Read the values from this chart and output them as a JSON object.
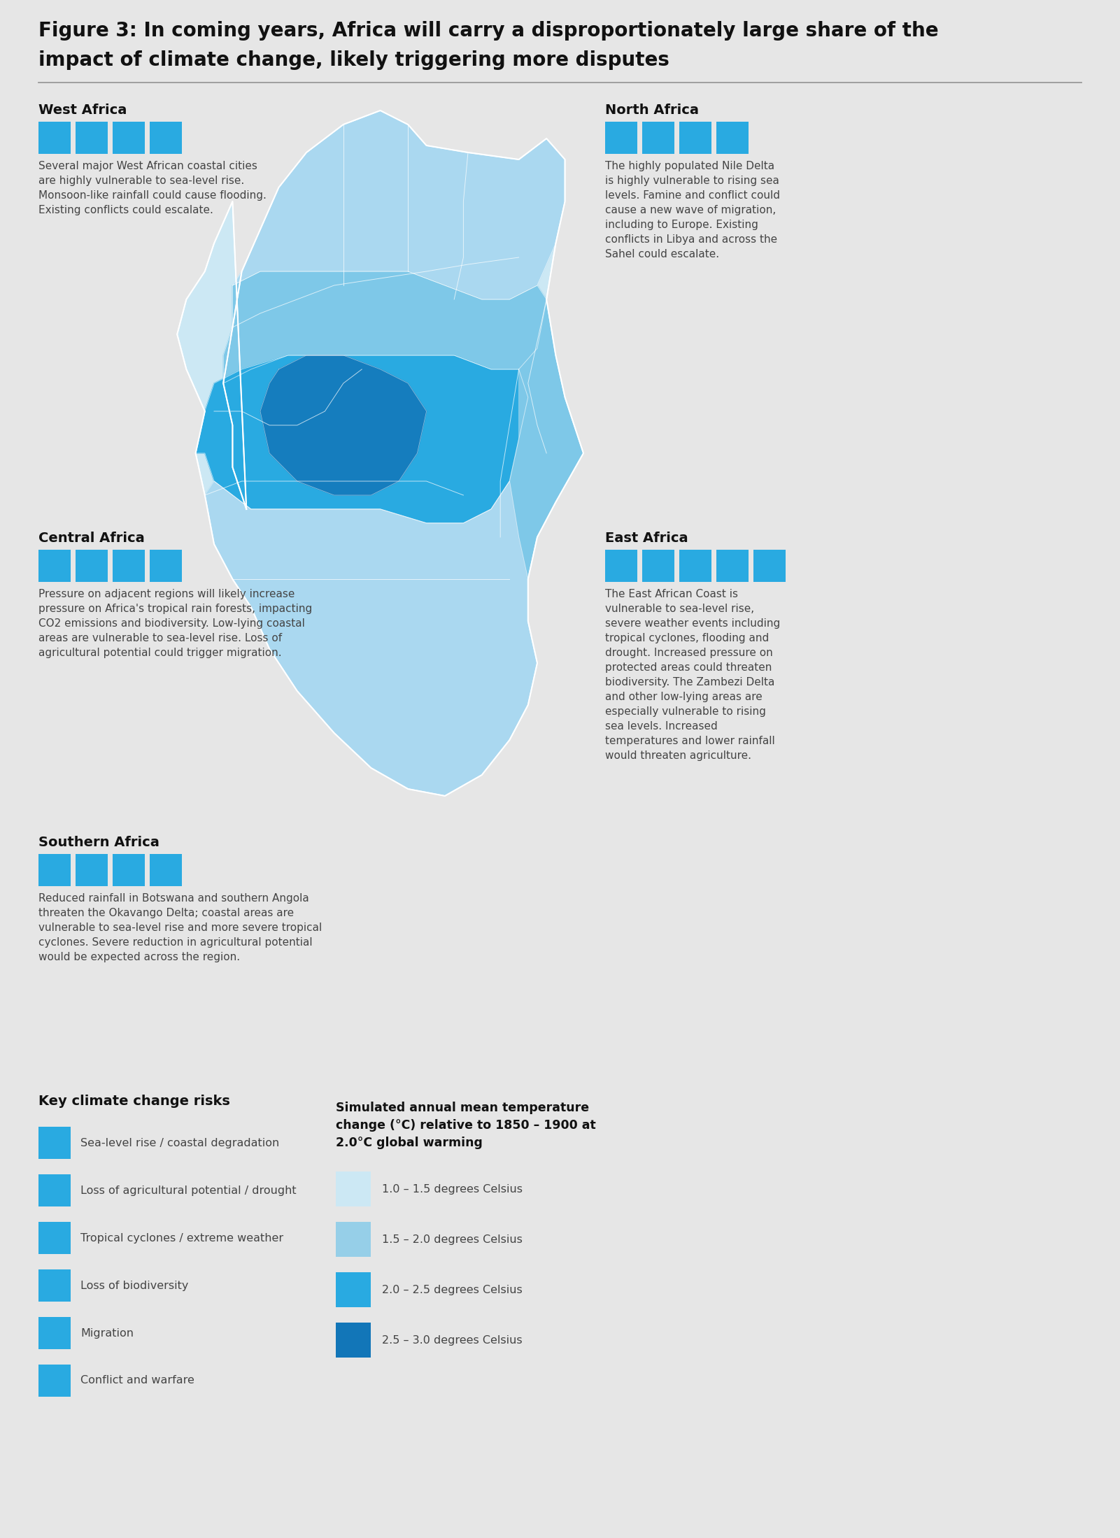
{
  "title_line1": "Figure 3: In coming years, Africa will carry a disproportionately large share of the",
  "title_line2": "impact of climate change, likely triggering more disputes",
  "bg_color": "#e6e6e6",
  "icon_color": "#29aae1",
  "title_color": "#000000",
  "body_text_color": "#444444",
  "west_africa_title": "West Africa",
  "west_africa_icons": 4,
  "west_africa_text": "Several major West African coastal cities\nare highly vulnerable to sea-level rise.\nMonsoon-like rainfall could cause flooding.\nExisting conflicts could escalate.",
  "north_africa_title": "North Africa",
  "north_africa_icons": 4,
  "north_africa_text": "The highly populated Nile Delta\nis highly vulnerable to rising sea\nlevels. Famine and conflict could\ncause a new wave of migration,\nincluding to Europe. Existing\nconflicts in Libya and across the\nSahel could escalate.",
  "central_africa_title": "Central Africa",
  "central_africa_icons": 4,
  "central_africa_text": "Pressure on adjacent regions will likely increase\npressure on Africa's tropical rain forests, impacting\nCO2 emissions and biodiversity. Low-lying coastal\nareas are vulnerable to sea-level rise. Loss of\nagricultural potential could trigger migration.",
  "east_africa_title": "East Africa",
  "east_africa_icons": 5,
  "east_africa_text": "The East African Coast is\nvulnerable to sea-level rise,\nsevere weather events including\ntropical cyclones, flooding and\ndrought. Increased pressure on\nprotected areas could threaten\nbiodiversity. The Zambezi Delta\nand other low-lying areas are\nespecially vulnerable to rising\nsea levels. Increased\ntemperatures and lower rainfall\nwould threaten agriculture.",
  "southern_africa_title": "Southern Africa",
  "southern_africa_icons": 4,
  "southern_africa_text": "Reduced rainfall in Botswana and southern Angola\nthreaten the Okavango Delta; coastal areas are\nvulnerable to sea-level rise and more severe tropical\ncyclones. Severe reduction in agricultural potential\nwould be expected across the region.",
  "key_title": "Key climate change risks",
  "key_items": [
    "Sea-level rise / coastal degradation",
    "Loss of agricultural potential / drought",
    "Tropical cyclones / extreme weather",
    "Loss of biodiversity",
    "Migration",
    "Conflict and warfare"
  ],
  "temp_legend_title": "Simulated annual mean temperature\nchange (°C) relative to 1850 – 1900 at\n2.0°C global warming",
  "temp_legend_colors": [
    "#cce8f4",
    "#96cfe8",
    "#29aae1",
    "#1276b8"
  ],
  "temp_legend_labels": [
    "1.0 – 1.5 degrees Celsius",
    "1.5 – 2.0 degrees Celsius",
    "2.0 – 2.5 degrees Celsius",
    "2.5 – 3.0 degrees Celsius"
  ]
}
